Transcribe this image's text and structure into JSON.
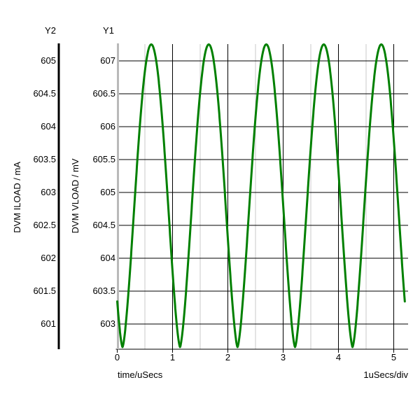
{
  "chart_data": {
    "type": "line",
    "title": "",
    "grid": {
      "major_color": "#000000",
      "minor_color": "#c9c9c9",
      "background": "#ffffff",
      "legend_position": "none"
    },
    "x_axis": {
      "label": "time/uSecs",
      "scale_label": "1uSecs/div",
      "tick_labels": [
        "0",
        "1",
        "2",
        "3",
        "4",
        "5"
      ],
      "tick_values": [
        0,
        1,
        2,
        3,
        4,
        5
      ],
      "minor_gridlines": [
        0.5,
        1.5,
        2.5,
        3.5,
        4.5
      ],
      "range": [
        0,
        5.27
      ],
      "units": "uSecs"
    },
    "y1_axis": {
      "header": "Y1",
      "title": "DVM VLOAD / mV",
      "units": "mV",
      "tick_labels": [
        "607",
        "606.5",
        "606",
        "605.5",
        "605",
        "604.5",
        "604",
        "603.5",
        "603"
      ],
      "tick_values": [
        607,
        606.5,
        606,
        605.5,
        605,
        604.5,
        604,
        603.5,
        603
      ],
      "range": [
        602.62,
        607.27
      ],
      "axis_color": "#b9b9b9"
    },
    "y2_axis": {
      "header": "Y2",
      "title": "DVM ILOAD / mA",
      "units": "mA",
      "tick_labels": [
        "605",
        "604.5",
        "604",
        "603.5",
        "603",
        "602.5",
        "602",
        "601.5",
        "601"
      ],
      "tick_values": [
        605,
        604.5,
        604,
        603.5,
        603,
        602.5,
        602,
        601.5,
        601
      ],
      "range": [
        600.62,
        605.27
      ],
      "axis_color": "#000000"
    },
    "series": [
      {
        "name": "DVM VLOAD",
        "axis": "y1",
        "color": "#008000",
        "stroke_width": 3,
        "waveform": {
          "shape": "periodic ripple: rounded crests, sharp V-shaped troughs",
          "formula": "v(t) = v_min + (v_max - v_min) * abs(sin(PI*(t - t_min0)/period))^exponent",
          "v_min": 602.65,
          "v_max": 607.25,
          "period_us": 1.04,
          "t_min0": 0.095,
          "exponent": 1.5,
          "t_start": 0,
          "t_end": 5.2,
          "value_at_start": 603.35,
          "value_at_end": 603.3,
          "peaks_t": [
            0.62,
            1.66,
            2.7,
            3.74,
            4.78
          ],
          "minima_t": [
            0.1,
            1.14,
            2.18,
            3.22,
            4.26
          ],
          "one_period_t_offsets": [
            0,
            0.13,
            0.26,
            0.39,
            0.52,
            0.65,
            0.78,
            0.91,
            1.04
          ],
          "one_period_values": [
            602.65,
            603.74,
            605.38,
            606.73,
            607.25,
            606.73,
            605.38,
            603.74,
            602.65
          ]
        }
      }
    ]
  }
}
